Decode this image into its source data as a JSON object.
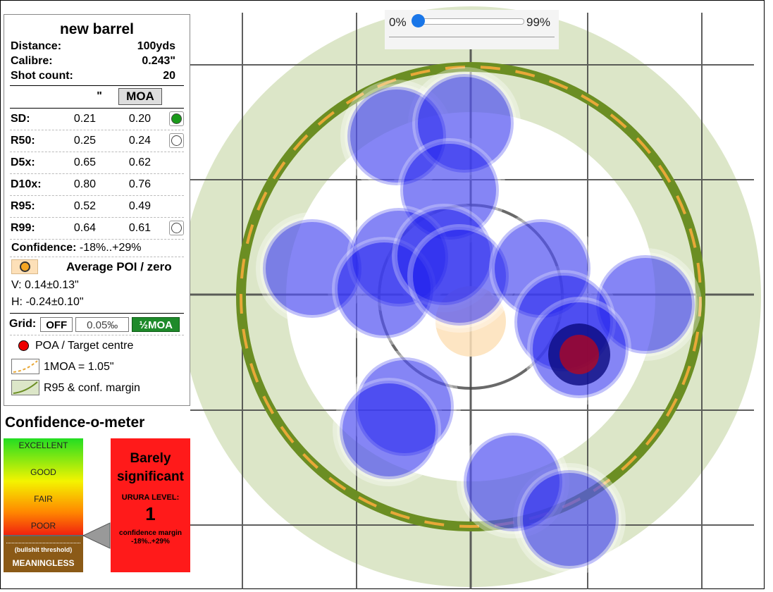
{
  "panel": {
    "title": "new barrel",
    "distance_label": "Distance:",
    "distance_value": "100yds",
    "calibre_label": "Calibre:",
    "calibre_value": "0.243\"",
    "shots_label": "Shot count:",
    "shots_value": "20",
    "unit_inch": "\"",
    "unit_moa": "MOA",
    "stats": [
      {
        "label": "SD:",
        "inch": "0.21",
        "moa": "0.20",
        "checkbox": "on"
      },
      {
        "label": "R50:",
        "inch": "0.25",
        "moa": "0.24",
        "checkbox": "off"
      },
      {
        "label": "D5x:",
        "inch": "0.65",
        "moa": "0.62",
        "checkbox": "none"
      },
      {
        "label": "D10x:",
        "inch": "0.80",
        "moa": "0.76",
        "checkbox": "none"
      },
      {
        "label": "R95:",
        "inch": "0.52",
        "moa": "0.49",
        "checkbox": "none"
      },
      {
        "label": "R99:",
        "inch": "0.64",
        "moa": "0.61",
        "checkbox": "off"
      }
    ],
    "confidence_label": "Confidence:",
    "confidence_value": "-18%..+29%",
    "poi_label": "Average POI / zero",
    "poi_v": "V: 0.14±0.13\"",
    "poi_h": "H: -0.24±0.10\"",
    "grid_label": "Grid:",
    "grid_off": "OFF",
    "grid_pct": "0.05‰",
    "grid_moa": "½MOA",
    "legend_poa": "POA / Target centre",
    "legend_moa": "1MOA = 1.05\"",
    "legend_r95": "R95 & conf. margin"
  },
  "slider": {
    "min_label": "0%",
    "max_label": "99%",
    "value": 0
  },
  "meter": {
    "title": "Confidence-o-meter",
    "levels": [
      "EXCELLENT",
      "GOOD",
      "FAIR",
      "POOR"
    ],
    "threshold": "(bullshit threshold)",
    "meaningless": "MEANINGLESS"
  },
  "verdict": {
    "line1": "Barely",
    "line2": "significant",
    "level_label": "URURA LEVEL:",
    "level": "1",
    "margin_label": "confidence margin",
    "margin_value": "-18%..+29%"
  },
  "colors": {
    "shot": "#2222ee",
    "ring_green": "#6b8e23",
    "ring_dash": "#e8a838",
    "halo": "#dce6c8",
    "poa": "#ee0000",
    "poi": "#f5a623"
  }
}
